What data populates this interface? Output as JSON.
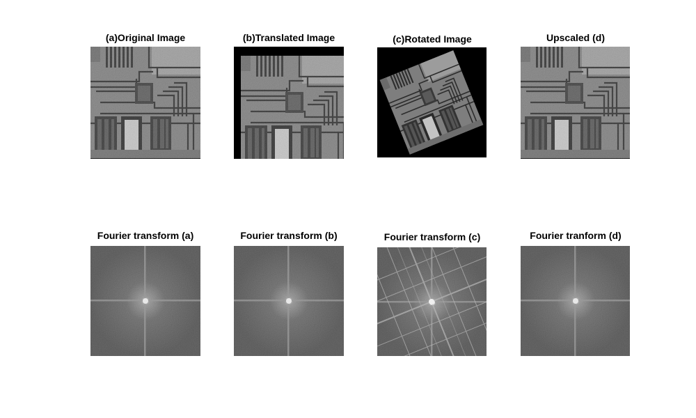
{
  "panels": {
    "a": {
      "title": "(a)Original Image"
    },
    "b": {
      "title": "(b)Translated Image"
    },
    "c": {
      "title": "(c)Rotated Image"
    },
    "d": {
      "title": "Upscaled (d)"
    },
    "fa": {
      "title": "Fourier transform (a)"
    },
    "fb": {
      "title": "Fourier transform (b)"
    },
    "fc": {
      "title": "Fourier transform (c)"
    },
    "fd": {
      "title": "Fourier tranform (d)"
    }
  }
}
